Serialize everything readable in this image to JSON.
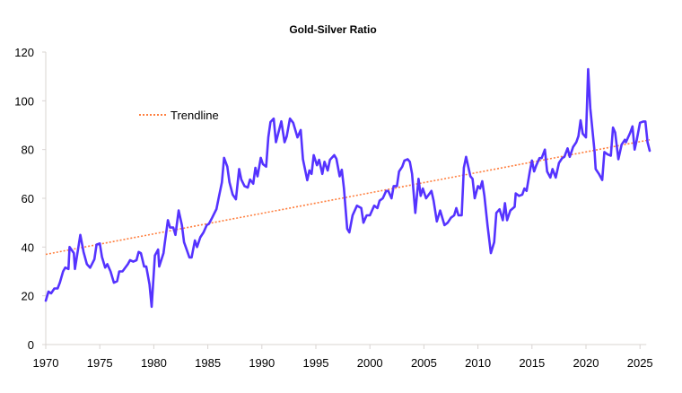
{
  "chart_data": {
    "type": "line",
    "title": "Gold-Silver Ratio",
    "xlabel": "",
    "ylabel": "",
    "xlim": [
      1970,
      2026
    ],
    "ylim": [
      0,
      120
    ],
    "x_ticks": [
      1970,
      1975,
      1980,
      1985,
      1990,
      1995,
      2000,
      2005,
      2010,
      2015,
      2020,
      2025
    ],
    "y_ticks": [
      0,
      20,
      40,
      60,
      80,
      100,
      120
    ],
    "grid": false,
    "legend": {
      "entries": [
        "Trendline"
      ],
      "placement": "top-left"
    },
    "colors": {
      "series": "#5533ff",
      "trendline": "#ff7f3f",
      "axis": "#d9d4d2"
    },
    "trendline": {
      "name": "Trendline",
      "points": [
        [
          1970,
          37
        ],
        [
          2025.9,
          84
        ]
      ]
    },
    "series": [
      {
        "name": "Gold-Silver Ratio",
        "points": [
          [
            1970.0,
            18
          ],
          [
            1970.25,
            21.7
          ],
          [
            1970.5,
            21
          ],
          [
            1970.8,
            23
          ],
          [
            1971.1,
            23
          ],
          [
            1971.3,
            25.4
          ],
          [
            1971.6,
            30
          ],
          [
            1971.8,
            31.6
          ],
          [
            1972.1,
            31
          ],
          [
            1972.2,
            40
          ],
          [
            1972.6,
            37.5
          ],
          [
            1972.7,
            31
          ],
          [
            1973.2,
            45
          ],
          [
            1973.5,
            38
          ],
          [
            1973.8,
            33
          ],
          [
            1974.1,
            31.5
          ],
          [
            1974.5,
            35
          ],
          [
            1974.7,
            41
          ],
          [
            1975.0,
            41.5
          ],
          [
            1975.2,
            36
          ],
          [
            1975.5,
            31.6
          ],
          [
            1975.7,
            33
          ],
          [
            1976.0,
            30
          ],
          [
            1976.3,
            25.4
          ],
          [
            1976.6,
            26
          ],
          [
            1976.8,
            30
          ],
          [
            1977.1,
            30
          ],
          [
            1977.6,
            33
          ],
          [
            1977.8,
            34.6
          ],
          [
            1978.1,
            34
          ],
          [
            1978.4,
            34.6
          ],
          [
            1978.6,
            38
          ],
          [
            1978.8,
            37.5
          ],
          [
            1979.1,
            32
          ],
          [
            1979.3,
            32
          ],
          [
            1979.6,
            24.7
          ],
          [
            1979.8,
            15.5
          ],
          [
            1980.1,
            36.5
          ],
          [
            1980.4,
            39
          ],
          [
            1980.5,
            32
          ],
          [
            1980.9,
            37.5
          ],
          [
            1981.0,
            41
          ],
          [
            1981.3,
            51
          ],
          [
            1981.5,
            48
          ],
          [
            1981.8,
            48
          ],
          [
            1982.0,
            45
          ],
          [
            1982.3,
            55
          ],
          [
            1982.6,
            49
          ],
          [
            1982.8,
            42
          ],
          [
            1983.0,
            39.5
          ],
          [
            1983.3,
            35.7
          ],
          [
            1983.5,
            35.7
          ],
          [
            1983.8,
            42.7
          ],
          [
            1984.0,
            40
          ],
          [
            1984.3,
            44
          ],
          [
            1984.6,
            46
          ],
          [
            1984.9,
            49
          ],
          [
            1985.1,
            49.5
          ],
          [
            1985.4,
            52
          ],
          [
            1985.8,
            55.6
          ],
          [
            1986.0,
            60
          ],
          [
            1986.3,
            66.6
          ],
          [
            1986.5,
            76.6
          ],
          [
            1986.8,
            73
          ],
          [
            1987.0,
            66.6
          ],
          [
            1987.3,
            61.5
          ],
          [
            1987.6,
            59.6
          ],
          [
            1987.9,
            72
          ],
          [
            1988.1,
            67.7
          ],
          [
            1988.4,
            65
          ],
          [
            1988.7,
            64.4
          ],
          [
            1988.9,
            67.7
          ],
          [
            1989.2,
            66
          ],
          [
            1989.4,
            72.5
          ],
          [
            1989.6,
            69
          ],
          [
            1989.9,
            76.6
          ],
          [
            1990.1,
            74
          ],
          [
            1990.4,
            73
          ],
          [
            1990.6,
            85
          ],
          [
            1990.8,
            91.3
          ],
          [
            1991.1,
            92.7
          ],
          [
            1991.3,
            83
          ],
          [
            1991.8,
            91.6
          ],
          [
            1992.1,
            83
          ],
          [
            1992.3,
            85.4
          ],
          [
            1992.6,
            92.7
          ],
          [
            1992.9,
            91
          ],
          [
            1993.3,
            85
          ],
          [
            1993.6,
            88
          ],
          [
            1993.8,
            76
          ],
          [
            1994.2,
            67.4
          ],
          [
            1994.4,
            71.4
          ],
          [
            1994.6,
            70
          ],
          [
            1994.8,
            77.7
          ],
          [
            1995.1,
            73.6
          ],
          [
            1995.3,
            75.8
          ],
          [
            1995.6,
            70
          ],
          [
            1995.8,
            75
          ],
          [
            1996.1,
            71.4
          ],
          [
            1996.3,
            75.8
          ],
          [
            1996.7,
            77.7
          ],
          [
            1996.9,
            76.2
          ],
          [
            1997.2,
            69
          ],
          [
            1997.4,
            71.7
          ],
          [
            1997.6,
            64
          ],
          [
            1997.9,
            47.5
          ],
          [
            1998.1,
            46
          ],
          [
            1998.4,
            53
          ],
          [
            1998.8,
            57
          ],
          [
            1999.2,
            56
          ],
          [
            1999.4,
            50
          ],
          [
            1999.7,
            53
          ],
          [
            2000.0,
            53
          ],
          [
            2000.4,
            57
          ],
          [
            2000.7,
            56
          ],
          [
            2000.9,
            59
          ],
          [
            2001.2,
            60
          ],
          [
            2001.5,
            63
          ],
          [
            2001.7,
            63
          ],
          [
            2002.0,
            60
          ],
          [
            2002.2,
            65
          ],
          [
            2002.5,
            65
          ],
          [
            2002.7,
            71
          ],
          [
            2003.0,
            73
          ],
          [
            2003.2,
            75.5
          ],
          [
            2003.5,
            76
          ],
          [
            2003.7,
            75
          ],
          [
            2003.9,
            70
          ],
          [
            2004.2,
            54
          ],
          [
            2004.5,
            68
          ],
          [
            2004.7,
            61
          ],
          [
            2004.9,
            64
          ],
          [
            2005.2,
            60
          ],
          [
            2005.7,
            63
          ],
          [
            2005.9,
            59
          ],
          [
            2006.2,
            50.5
          ],
          [
            2006.5,
            55
          ],
          [
            2006.9,
            49
          ],
          [
            2007.2,
            50
          ],
          [
            2007.5,
            52
          ],
          [
            2007.8,
            53
          ],
          [
            2008.0,
            56
          ],
          [
            2008.2,
            53
          ],
          [
            2008.5,
            53
          ],
          [
            2008.7,
            72.5
          ],
          [
            2008.9,
            77
          ],
          [
            2009.3,
            69
          ],
          [
            2009.5,
            68
          ],
          [
            2009.7,
            60
          ],
          [
            2010.0,
            65
          ],
          [
            2010.2,
            64
          ],
          [
            2010.4,
            67
          ],
          [
            2010.6,
            61
          ],
          [
            2010.9,
            48.5
          ],
          [
            2011.2,
            37.5
          ],
          [
            2011.5,
            42
          ],
          [
            2011.7,
            54
          ],
          [
            2012.0,
            55.5
          ],
          [
            2012.3,
            51
          ],
          [
            2012.5,
            58
          ],
          [
            2012.7,
            51
          ],
          [
            2013.0,
            55
          ],
          [
            2013.4,
            56.5
          ],
          [
            2013.5,
            62
          ],
          [
            2013.8,
            61
          ],
          [
            2014.1,
            61.5
          ],
          [
            2014.3,
            64
          ],
          [
            2014.5,
            63
          ],
          [
            2014.8,
            71
          ],
          [
            2015.0,
            75.5
          ],
          [
            2015.2,
            71
          ],
          [
            2015.4,
            73.5
          ],
          [
            2015.7,
            76.5
          ],
          [
            2015.9,
            76.5
          ],
          [
            2016.2,
            80
          ],
          [
            2016.4,
            71
          ],
          [
            2016.7,
            68.5
          ],
          [
            2016.9,
            72
          ],
          [
            2017.2,
            68.5
          ],
          [
            2017.5,
            74.5
          ],
          [
            2017.8,
            76.5
          ],
          [
            2018.0,
            77
          ],
          [
            2018.3,
            80.5
          ],
          [
            2018.5,
            77
          ],
          [
            2018.8,
            81
          ],
          [
            2019.1,
            83
          ],
          [
            2019.3,
            85.5
          ],
          [
            2019.5,
            92
          ],
          [
            2019.7,
            86.5
          ],
          [
            2020.0,
            85
          ],
          [
            2020.2,
            113
          ],
          [
            2020.4,
            97
          ],
          [
            2020.8,
            79
          ],
          [
            2020.9,
            72
          ],
          [
            2021.2,
            70
          ],
          [
            2021.5,
            67.5
          ],
          [
            2021.7,
            79
          ],
          [
            2022.0,
            78
          ],
          [
            2022.3,
            77.5
          ],
          [
            2022.5,
            89
          ],
          [
            2022.7,
            87
          ],
          [
            2023.0,
            76
          ],
          [
            2023.3,
            82
          ],
          [
            2023.6,
            84
          ],
          [
            2023.7,
            83
          ],
          [
            2024.1,
            87
          ],
          [
            2024.3,
            89.5
          ],
          [
            2024.5,
            80
          ],
          [
            2024.7,
            84
          ],
          [
            2025.0,
            91
          ],
          [
            2025.3,
            91.5
          ],
          [
            2025.5,
            91.5
          ],
          [
            2025.7,
            83
          ],
          [
            2025.9,
            79.5
          ]
        ]
      }
    ]
  }
}
